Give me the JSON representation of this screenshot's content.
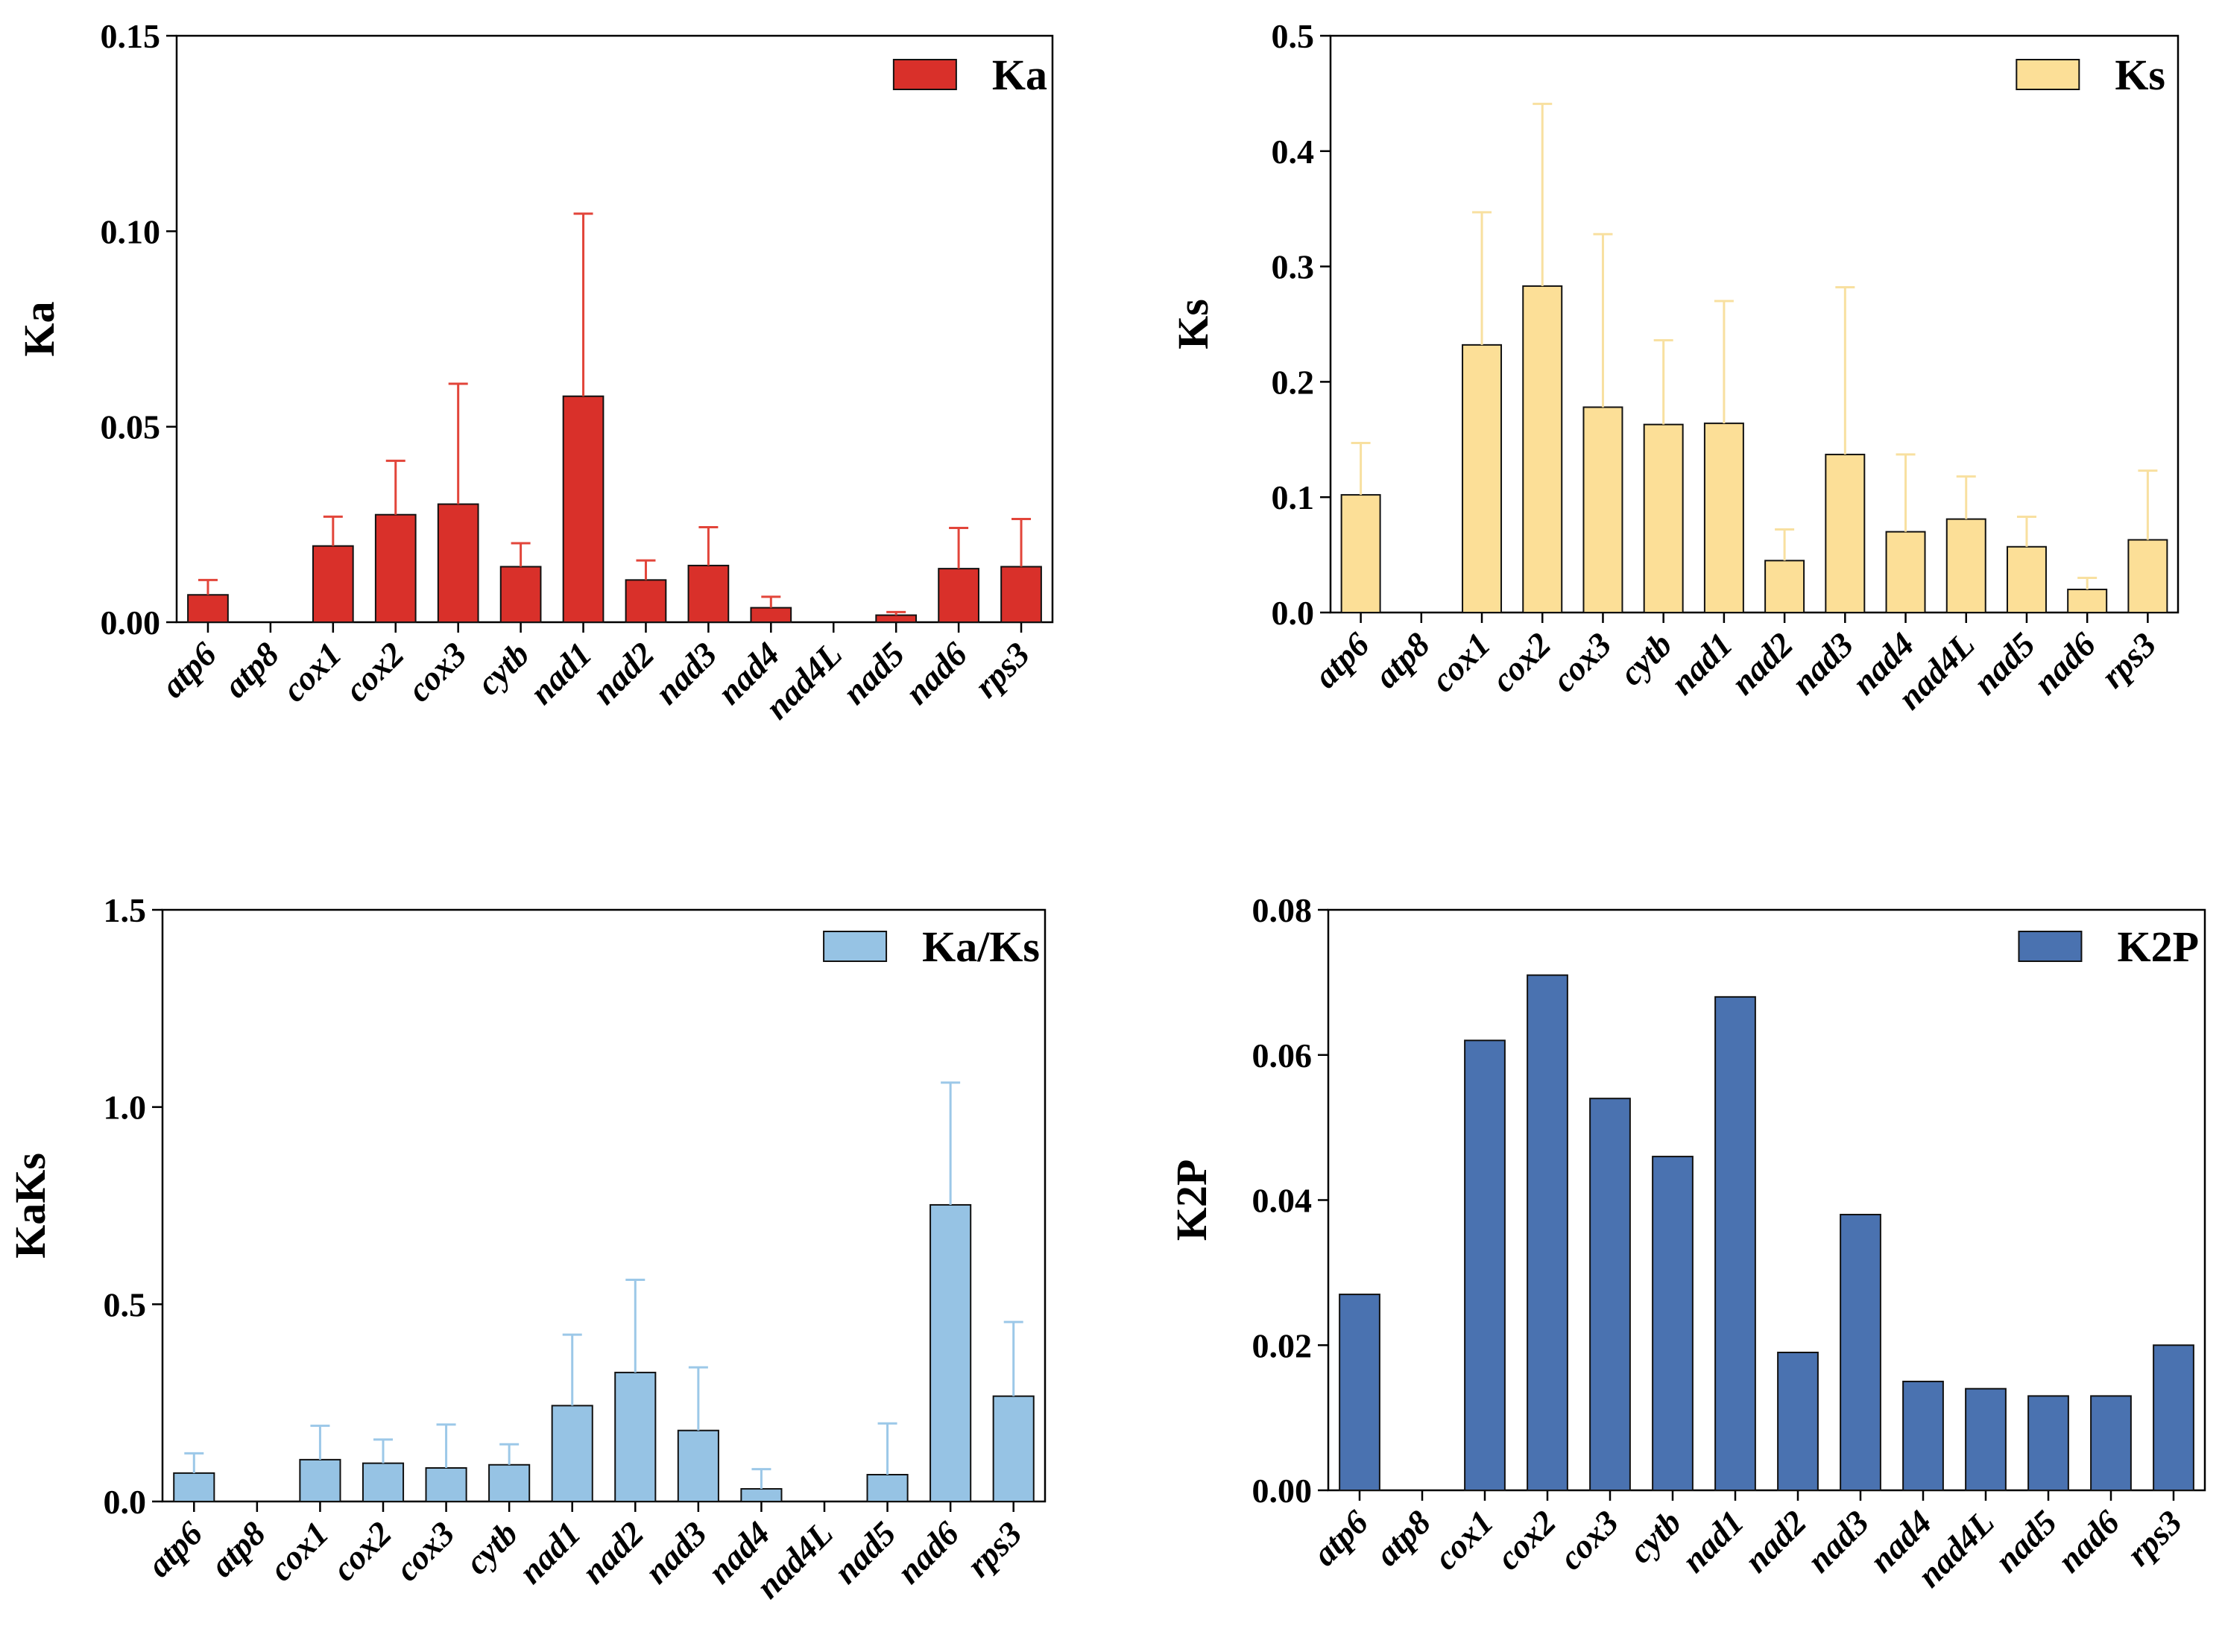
{
  "chart_data": [
    {
      "type": "bar",
      "title": "",
      "xlabel": "",
      "ylabel": "Ka",
      "legend": "Ka",
      "legend_position": "top-right",
      "color": "#d9302a",
      "error_color": "#e2453a",
      "ylim": [
        0,
        0.15
      ],
      "yticks": [
        0,
        0.05,
        0.1,
        0.15
      ],
      "ytick_labels": [
        "0.00",
        "0.05",
        "0.10",
        "0.15"
      ],
      "categories": [
        "atp6",
        "atp8",
        "cox1",
        "cox2",
        "cox3",
        "cytb",
        "nad1",
        "nad2",
        "nad3",
        "nad4",
        "nad4L",
        "nad5",
        "nad6",
        "rps3"
      ],
      "values": [
        0.007,
        0,
        0.0195,
        0.0275,
        0.0302,
        0.0142,
        0.0578,
        0.0108,
        0.0145,
        0.0037,
        0,
        0.0018,
        0.0137,
        0.0142
      ],
      "errors": [
        0.0038,
        0,
        0.0075,
        0.0138,
        0.0308,
        0.006,
        0.0467,
        0.005,
        0.0098,
        0.0028,
        0,
        0.0008,
        0.0104,
        0.0122
      ]
    },
    {
      "type": "bar",
      "title": "",
      "xlabel": "",
      "ylabel": "Ks",
      "legend": "Ks",
      "legend_position": "top-right",
      "color": "#fcdf97",
      "error_color": "#f8e0a0",
      "ylim": [
        0,
        0.5
      ],
      "yticks": [
        0,
        0.1,
        0.2,
        0.3,
        0.4,
        0.5
      ],
      "ytick_labels": [
        "0.0",
        "0.1",
        "0.2",
        "0.3",
        "0.4",
        "0.5"
      ],
      "categories": [
        "atp6",
        "atp8",
        "cox1",
        "cox2",
        "cox3",
        "cytb",
        "nad1",
        "nad2",
        "nad3",
        "nad4",
        "nad4L",
        "nad5",
        "nad6",
        "rps3"
      ],
      "values": [
        0.102,
        0,
        0.232,
        0.283,
        0.178,
        0.163,
        0.164,
        0.045,
        0.137,
        0.07,
        0.081,
        0.057,
        0.02,
        0.063
      ],
      "errors": [
        0.045,
        0,
        0.115,
        0.158,
        0.15,
        0.073,
        0.106,
        0.027,
        0.145,
        0.067,
        0.037,
        0.026,
        0.01,
        0.06
      ]
    },
    {
      "type": "bar",
      "title": "",
      "xlabel": "",
      "ylabel": "KaKs",
      "legend": "Ka/Ks",
      "legend_position": "top-right",
      "color": "#96c3e4",
      "error_color": "#9cc8e8",
      "ylim": [
        0,
        1.5
      ],
      "yticks": [
        0,
        0.5,
        1,
        1.5
      ],
      "ytick_labels": [
        "0.0",
        "0.5",
        "1.0",
        "1.5"
      ],
      "categories": [
        "atp6",
        "atp8",
        "cox1",
        "cox2",
        "cox3",
        "cytb",
        "nad1",
        "nad2",
        "nad3",
        "nad4",
        "nad4L",
        "nad5",
        "nad6",
        "rps3"
      ],
      "values": [
        0.072,
        0,
        0.106,
        0.097,
        0.085,
        0.093,
        0.243,
        0.327,
        0.18,
        0.032,
        0,
        0.068,
        0.752,
        0.267
      ],
      "errors": [
        0.05,
        0,
        0.086,
        0.06,
        0.11,
        0.052,
        0.18,
        0.235,
        0.16,
        0.05,
        0,
        0.13,
        0.31,
        0.188
      ]
    },
    {
      "type": "bar",
      "title": "",
      "xlabel": "",
      "ylabel": "K2P",
      "legend": "K2P",
      "legend_position": "top-right",
      "color": "#4a72b0",
      "error_color": "#4a72b0",
      "ylim": [
        0,
        0.08
      ],
      "yticks": [
        0,
        0.02,
        0.04,
        0.06,
        0.08
      ],
      "ytick_labels": [
        "0.00",
        "0.02",
        "0.04",
        "0.06",
        "0.08"
      ],
      "categories": [
        "atp6",
        "atp8",
        "cox1",
        "cox2",
        "cox3",
        "cytb",
        "nad1",
        "nad2",
        "nad3",
        "nad4",
        "nad4L",
        "nad5",
        "nad6",
        "rps3"
      ],
      "values": [
        0.027,
        0,
        0.062,
        0.071,
        0.054,
        0.046,
        0.068,
        0.019,
        0.038,
        0.015,
        0.014,
        0.013,
        0.013,
        0.02
      ],
      "errors": [
        0,
        0,
        0,
        0,
        0,
        0,
        0,
        0,
        0,
        0,
        0,
        0,
        0,
        0
      ]
    }
  ]
}
